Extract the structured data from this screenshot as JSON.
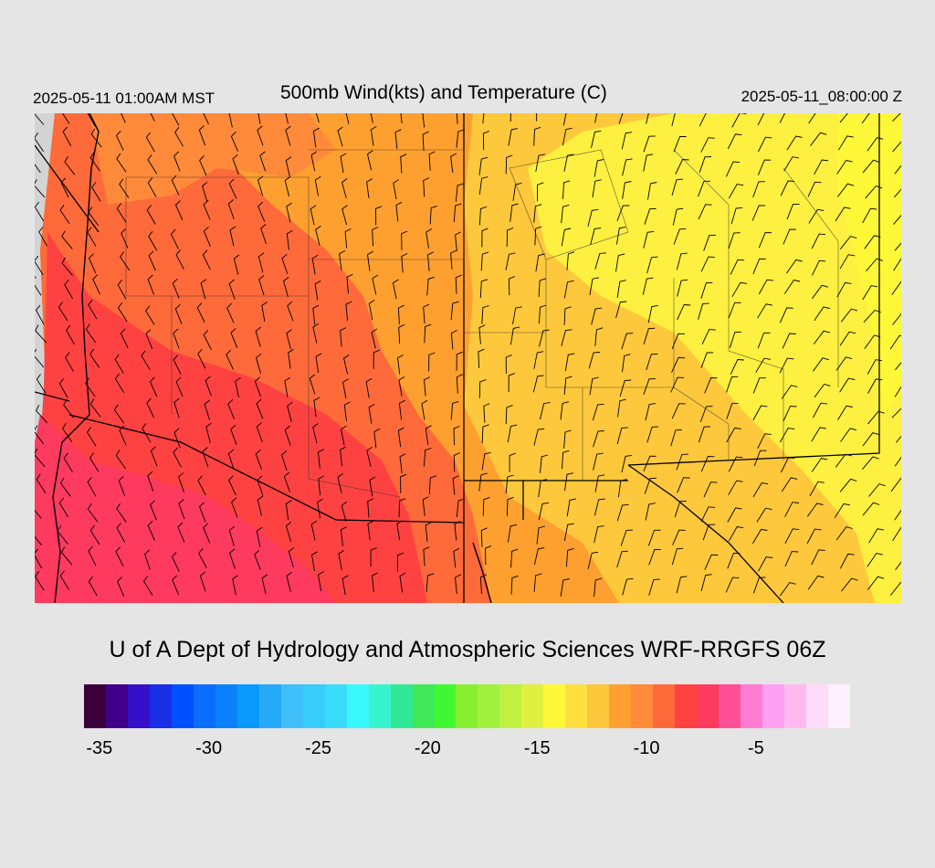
{
  "header": {
    "valid_local": "2025-05-11 01:00AM MST",
    "title": "500mb Wind(kts) and Temperature (C)",
    "valid_utc": "2025-05-11_08:00:00 Z"
  },
  "map": {
    "fill_regions": [
      {
        "level": "-8 to -7",
        "color": "#fe3a5f",
        "where": "southwest"
      },
      {
        "level": "-9 to -8",
        "color": "#fe4242",
        "where": "west"
      },
      {
        "level": "-10 to -9",
        "color": "#fe6a3a",
        "where": "west-central"
      },
      {
        "level": "-12 to -10",
        "color": "#fea030",
        "where": "central"
      },
      {
        "level": "-13 to -12",
        "color": "#fec83c",
        "where": "east"
      },
      {
        "level": "-15 to -13",
        "color": "#fef040",
        "where": "northeast"
      }
    ],
    "missing_color": "#d3d3d3",
    "overlays": [
      "wind-barbs",
      "temperature-contours",
      "state-boundaries",
      "county-boundaries",
      "coastline"
    ]
  },
  "footer": {
    "credit": "U of A Dept of Hydrology and Atmospheric Sciences WRF-RRGFS 06Z"
  },
  "colorbar": {
    "colors": [
      "#3a003a",
      "#400088",
      "#3610c8",
      "#1a2ee6",
      "#0050ff",
      "#0a6efc",
      "#0a82fc",
      "#0a9afc",
      "#28aafa",
      "#40c0fa",
      "#38ccfa",
      "#38dcfa",
      "#38f8fc",
      "#38f4ce",
      "#30e896",
      "#40e858",
      "#40f830",
      "#88f030",
      "#a0f040",
      "#c0f040",
      "#e0f040",
      "#fef838",
      "#fee040",
      "#fec83c",
      "#fea030",
      "#fe8a3a",
      "#fe6a3a",
      "#fe4242",
      "#fe3a5f",
      "#fe5096",
      "#fe7cd2",
      "#fea0f4",
      "#febaee",
      "#fedcfa",
      "#fef0fe"
    ],
    "ticks": [
      "-35",
      "-30",
      "-25",
      "-20",
      "-15",
      "-10",
      "-5"
    ]
  }
}
